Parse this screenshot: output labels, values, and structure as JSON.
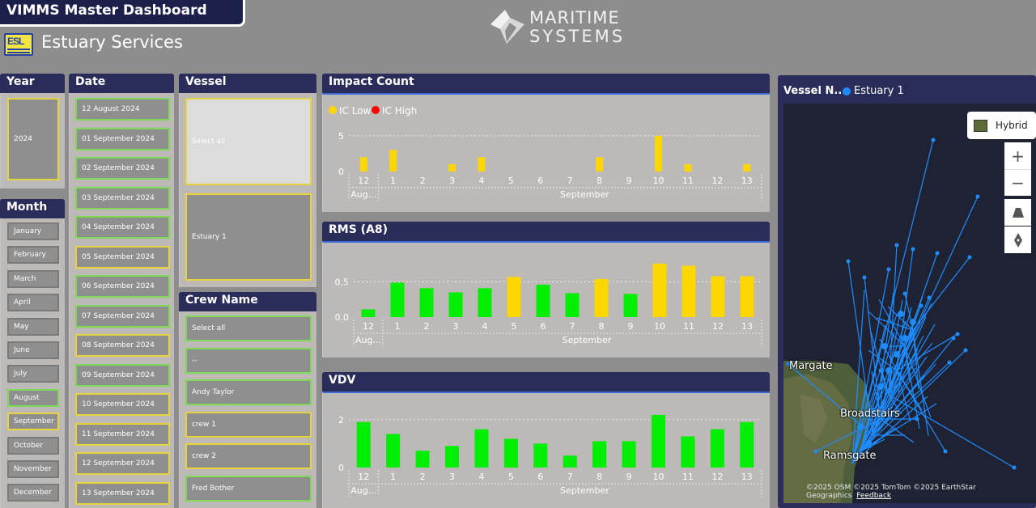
{
  "header": {
    "app_title": "VIMMS Master Dashboard",
    "company": "Estuary Services",
    "logo_text": "ESL",
    "brand_line1": "MARITIME",
    "brand_line2": "SYSTEMS"
  },
  "year_slicer": {
    "title": "Year",
    "value": "2024"
  },
  "month_slicer": {
    "title": "Month",
    "items": [
      "January",
      "February",
      "March",
      "April",
      "May",
      "June",
      "July",
      "August",
      "September",
      "October",
      "November",
      "December"
    ],
    "selected": [
      "August",
      "September"
    ]
  },
  "date_slicer": {
    "title": "Date",
    "items": [
      "12 August 2024",
      "01 September 2024",
      "02 September 2024",
      "03 September 2024",
      "04 September 2024",
      "05 September 2024",
      "06 September 2024",
      "07 September 2024",
      "08 September 2024",
      "09 September 2024",
      "10 September 2024",
      "11 September 2024",
      "12 September 2024",
      "13 September 2024"
    ],
    "highlighted": [
      "05 September 2024",
      "08 September 2024",
      "10 September 2024",
      "11 September 2024",
      "12 September 2024",
      "13 September 2024"
    ]
  },
  "vessel_slicer": {
    "title": "Vessel",
    "items": [
      "Select all",
      "Estuary 1"
    ]
  },
  "crew_slicer": {
    "title": "Crew Name",
    "items": [
      "Select all",
      "--",
      "Andy Taylor",
      "crew 1",
      "crew 2",
      "Fred Bother"
    ],
    "highlighted": [
      "crew 1",
      "crew 2"
    ]
  },
  "chart_data": [
    {
      "type": "bar",
      "title": "Impact Count",
      "categories": [
        "12",
        "1",
        "2",
        "3",
        "4",
        "5",
        "6",
        "7",
        "8",
        "9",
        "10",
        "11",
        "12",
        "13"
      ],
      "month_labels": [
        {
          "label": "Aug...",
          "at": 0
        },
        {
          "label": "September",
          "at": 7.5
        }
      ],
      "series": [
        {
          "name": "IC Low",
          "color": "#ffd700",
          "values": [
            2,
            3,
            0,
            1,
            2,
            0,
            0,
            0,
            2,
            0,
            5,
            1,
            0,
            1
          ]
        },
        {
          "name": "IC High",
          "color": "#ff0000",
          "values": [
            0,
            0,
            0,
            0,
            0,
            0,
            0,
            0,
            0,
            0,
            0,
            0,
            0,
            0
          ]
        }
      ],
      "yticks": [
        0,
        5
      ],
      "ylim": [
        0,
        6
      ]
    },
    {
      "type": "bar",
      "title": "RMS (A8)",
      "categories": [
        "12",
        "1",
        "2",
        "3",
        "4",
        "5",
        "6",
        "7",
        "8",
        "9",
        "10",
        "11",
        "12",
        "13"
      ],
      "month_labels": [
        {
          "label": "Aug...",
          "at": 0
        },
        {
          "label": "September",
          "at": 7.5
        }
      ],
      "values": [
        0.11,
        0.49,
        0.41,
        0.35,
        0.41,
        0.57,
        0.46,
        0.34,
        0.54,
        0.33,
        0.76,
        0.73,
        0.58,
        0.58
      ],
      "colors": [
        "#00ee00",
        "#00ee00",
        "#00ee00",
        "#00ee00",
        "#00ee00",
        "#ffd700",
        "#00ee00",
        "#00ee00",
        "#ffd700",
        "#00ee00",
        "#ffd700",
        "#ffd700",
        "#ffd700",
        "#ffd700"
      ],
      "yticks": [
        0.0,
        0.5
      ],
      "ytick_labels": [
        "0.0",
        "0.5"
      ],
      "ylim": [
        0,
        0.85
      ]
    },
    {
      "type": "bar",
      "title": "VDV",
      "categories": [
        "12",
        "1",
        "2",
        "3",
        "4",
        "5",
        "6",
        "7",
        "8",
        "9",
        "10",
        "11",
        "12",
        "13"
      ],
      "month_labels": [
        {
          "label": "Aug...",
          "at": 0
        },
        {
          "label": "September",
          "at": 7.5
        }
      ],
      "values": [
        1.9,
        1.4,
        0.7,
        0.9,
        1.6,
        1.2,
        1.0,
        0.5,
        1.1,
        1.1,
        2.2,
        1.3,
        1.6,
        1.9
      ],
      "colors": [
        "#00ee00",
        "#00ee00",
        "#00ee00",
        "#00ee00",
        "#00ee00",
        "#00ee00",
        "#00ee00",
        "#00ee00",
        "#00ee00",
        "#00ee00",
        "#00ee00",
        "#00ee00",
        "#00ee00",
        "#00ee00"
      ],
      "yticks": [
        0,
        2
      ],
      "ylim": [
        0,
        2.5
      ]
    }
  ],
  "map": {
    "title": "Vessel N...",
    "legend": "Estuary 1",
    "legend_color": "#1e8cff",
    "style_button": "Hybrid",
    "places": [
      "Margate",
      "Broadstairs",
      "Ramsgate"
    ],
    "credits": "©2025 OSM  ©2025 TomTom  ©2025 EarthStar Geographics",
    "feedback": "Feedback"
  }
}
